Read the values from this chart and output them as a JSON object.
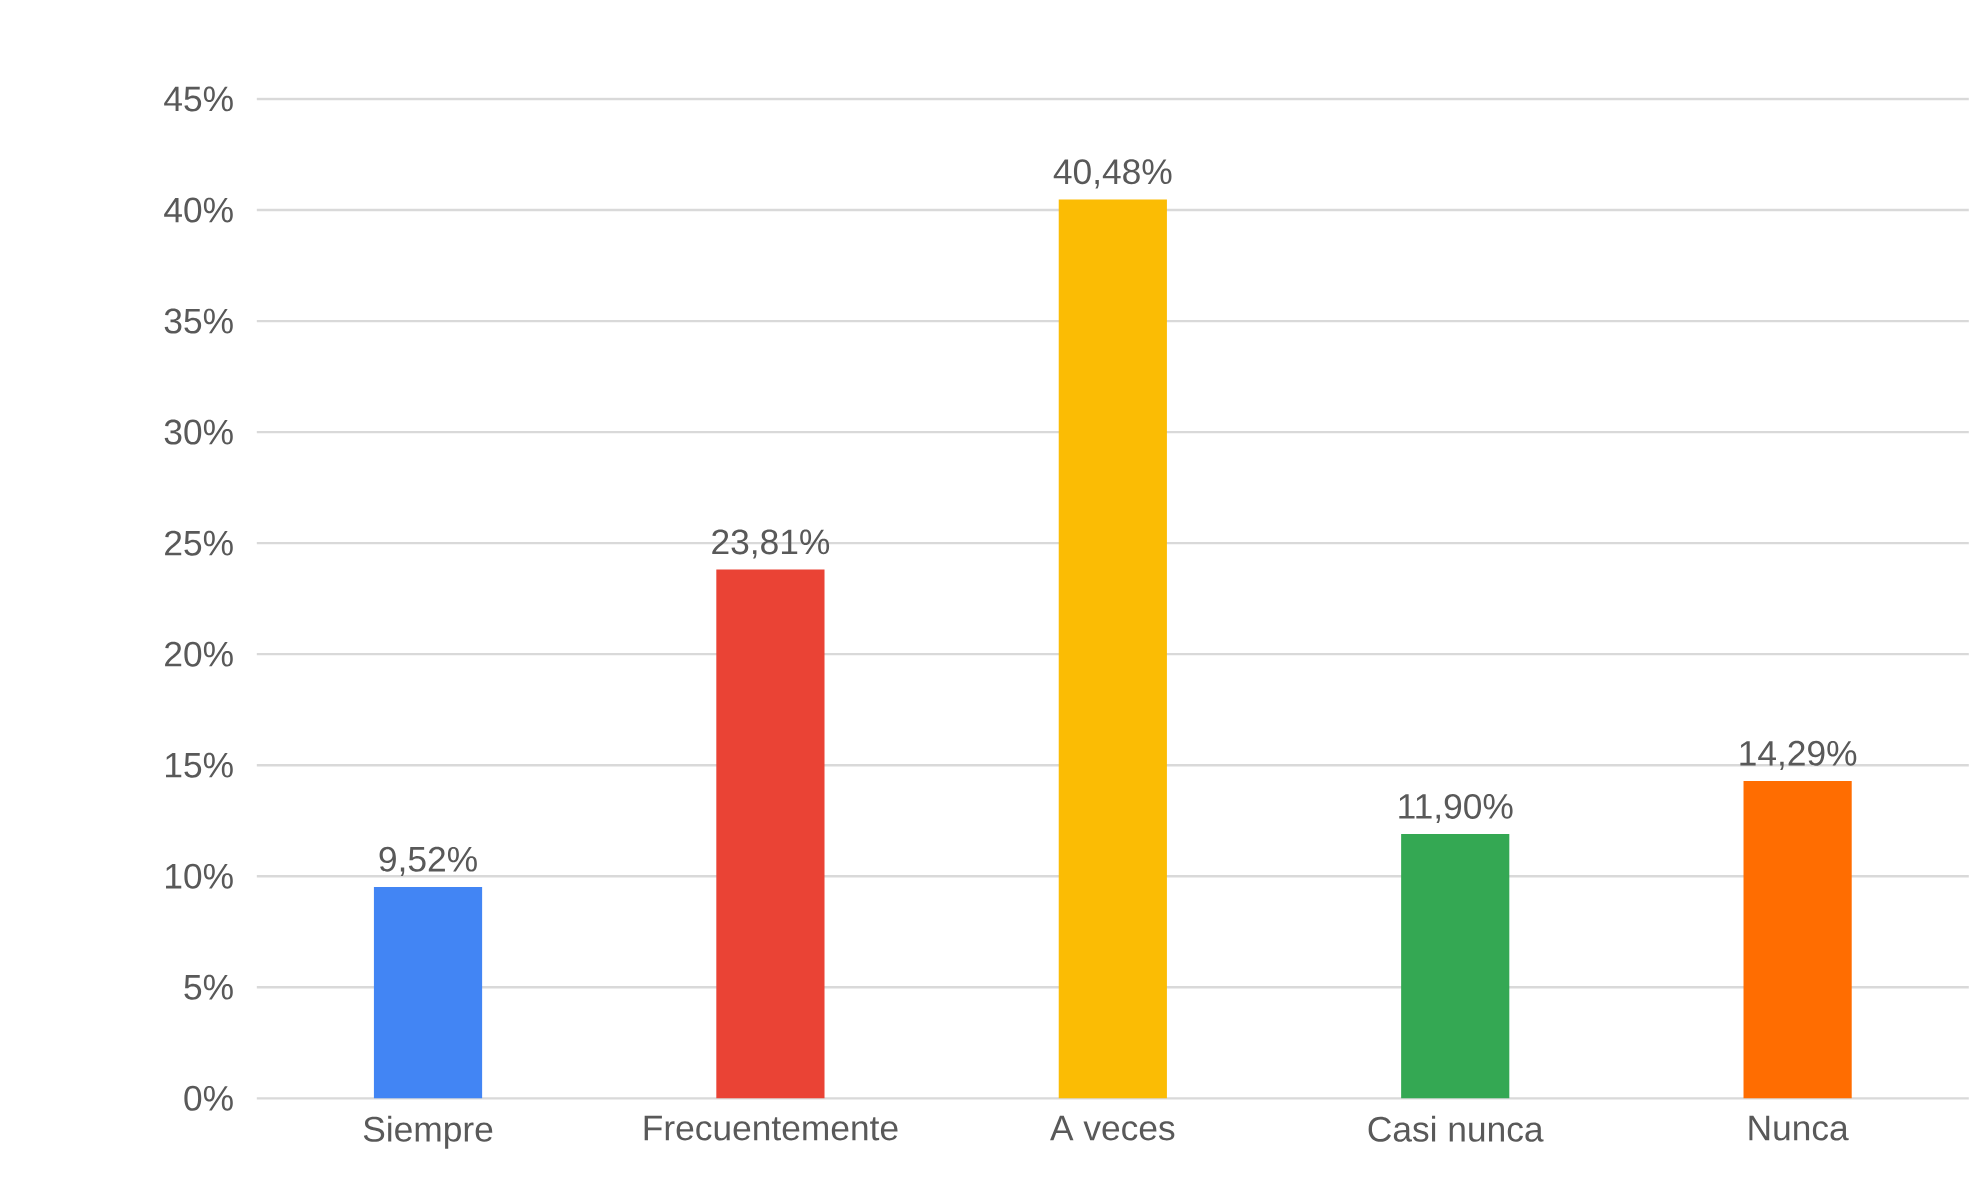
{
  "chart_data": {
    "type": "bar",
    "categories": [
      "Siempre",
      "Frecuentemente",
      "A veces",
      "Casi nunca",
      "Nunca"
    ],
    "values": [
      9.52,
      23.81,
      40.48,
      11.9,
      14.29
    ],
    "colors": [
      "#4285f4",
      "#ea4335",
      "#fbbc04",
      "#34a853",
      "#ff6d01"
    ],
    "value_labels": [
      "9,52%",
      "23,81%",
      "40,48%",
      "11,90%",
      "14,29%"
    ],
    "ylim": [
      0,
      45
    ],
    "yticks": [
      {
        "value": 0,
        "label": "0%"
      },
      {
        "value": 5,
        "label": "5%"
      },
      {
        "value": 10,
        "label": "10%"
      },
      {
        "value": 15,
        "label": "15%"
      },
      {
        "value": 20,
        "label": "20%"
      },
      {
        "value": 25,
        "label": "25%"
      },
      {
        "value": 30,
        "label": "30%"
      },
      {
        "value": 35,
        "label": "35%"
      },
      {
        "value": 40,
        "label": "40%"
      },
      {
        "value": 45,
        "label": "45%"
      }
    ],
    "grid": "y"
  }
}
